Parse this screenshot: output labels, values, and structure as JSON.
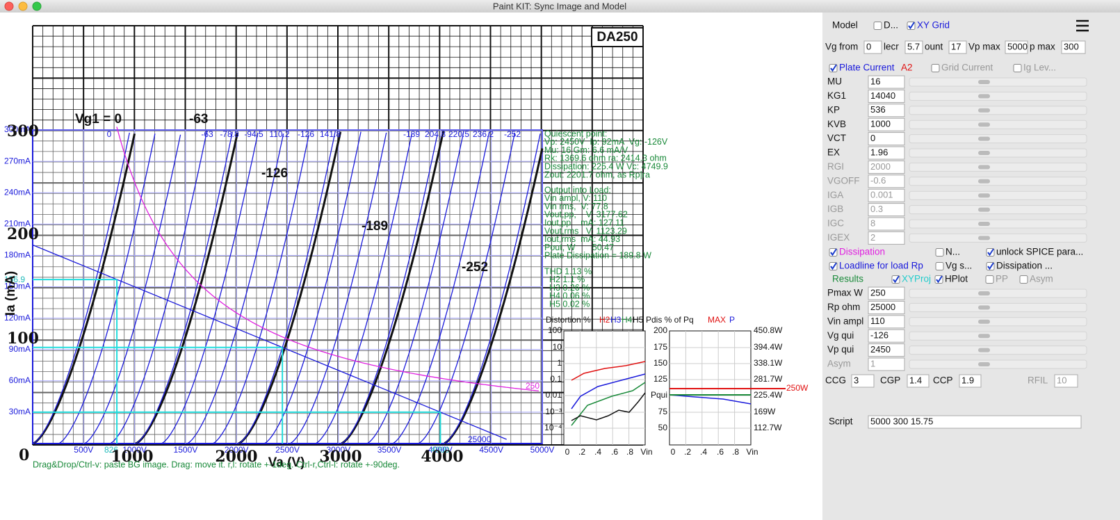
{
  "window": {
    "title": "Paint KIT: Sync Image and Model"
  },
  "scan": {
    "tube": "DA250",
    "y_labels": [
      "300",
      "200",
      "100",
      "0"
    ],
    "x_labels": [
      "1000",
      "2000",
      "3000",
      "4000"
    ],
    "curve_labels": [
      "Vg1 = 0",
      "-63",
      "-126",
      "-189",
      "-252"
    ],
    "y_axis": "Ia (mA)",
    "x_axis": "Va (V)"
  },
  "plot": {
    "y_ticks": [
      "30mA",
      "60mA",
      "90mA",
      "120mA",
      "150mA",
      "180mA",
      "210mA",
      "240mA",
      "270mA",
      "300mA"
    ],
    "x_ticks": [
      "500V",
      "1000V",
      "1500V",
      "2000V",
      "2500V",
      "3000V",
      "3500V",
      "4000V",
      "4500V",
      "5000V"
    ],
    "grid_labels": [
      "0",
      "-63",
      "-78.8",
      "-94.5",
      "110.2",
      "-126",
      "141.8",
      "-189",
      "204.8",
      "220.5",
      "236.2",
      "-252"
    ],
    "projection_labels": [
      "156.9",
      "826",
      "4000"
    ],
    "dissipation_label": "250",
    "loadline_label": "25000"
  },
  "info": {
    "quiescent": [
      "Quiescent point:",
      "Vp: 2450V  Ip: 92mA  Vg: -126V",
      "Mu: 16 Gm: 6.6 mA/V",
      "Rk: 1369.6 ohm ra: 2414.3 ohm",
      "Dissipation: 225.4 W Vc: 4749.9",
      "Zout: 2201.7 ohm, as Rp|ra"
    ],
    "output": [
      "Output into Load:",
      "Vin ampl, V: 110",
      "Vin rms,  V: 77.8",
      "Vout,pp,    V: 3177.62",
      "Iout,pp    mA: 127.11",
      "Vout,rms   V: 1123.29",
      "Iout,rms  mA: 44.93",
      "Pout, W       50.47",
      "Plate Dissipation = 189.8 W"
    ],
    "thd": [
      "THD 1.13 %",
      "  H2 1.1 %",
      "  H3 0.26 %",
      "  H4 0.06 %",
      "  H5 0.02 %"
    ]
  },
  "distortion": {
    "title": "Distortion %",
    "h2": "H2",
    "h3": "H3",
    "h4": "H4",
    "h5": "H5",
    "pdis": "Pdis % of Pq",
    "max": "MAX",
    "p": "P",
    "left_y": [
      "100",
      "10",
      "1",
      "0.1",
      "0.01",
      "10⁻³",
      "10⁻⁴"
    ],
    "x": [
      "0",
      ".2",
      ".4",
      ".6",
      ".8",
      "Vin"
    ],
    "right_y_left": [
      "200",
      "175",
      "150",
      "125",
      "Pqui",
      "75",
      "50"
    ],
    "right_y_right": [
      "450.8W",
      "394.4W",
      "338.1W",
      "281.7W",
      "225.4W",
      "169W",
      "112.7W"
    ],
    "max_label": "250W"
  },
  "status": "Drag&Drop/Ctrl-v: paste BG image. Drag: move it. r,l: rotate +-1deg. Ctrl-r,Ctrl-l: rotate +-90deg.",
  "panel": {
    "header": [
      {
        "label": "Model"
      },
      {
        "label": "D...",
        "checked": false
      },
      {
        "label": "XY Grid",
        "checked": true
      }
    ],
    "range": [
      {
        "label": "Vg from",
        "value": 0
      },
      {
        "label": "lecr",
        "value": 5.7
      },
      {
        "label": "ount",
        "value": 17
      },
      {
        "label": "Vp max",
        "value": 5000
      },
      {
        "label": "p max",
        "value": 300
      }
    ],
    "plate_row": [
      {
        "label": "Plate Current",
        "checked": true
      },
      {
        "label": "A2"
      },
      {
        "label": "Grid Current",
        "checked": false
      },
      {
        "label": "Ig Lev...",
        "checked": false
      }
    ],
    "params": [
      {
        "label": "MU",
        "value": 16,
        "enabled": true
      },
      {
        "label": "KG1",
        "value": 14040,
        "enabled": true
      },
      {
        "label": "KP",
        "value": 536,
        "enabled": true
      },
      {
        "label": "KVB",
        "value": 1000,
        "enabled": true
      },
      {
        "label": "VCT",
        "value": 0,
        "enabled": true
      },
      {
        "label": "EX",
        "value": 1.96,
        "enabled": true
      },
      {
        "label": "RGI",
        "value": 2000,
        "enabled": false
      },
      {
        "label": "VGOFF",
        "value": -0.6,
        "enabled": false
      },
      {
        "label": "IGA",
        "value": 0.001,
        "enabled": false
      },
      {
        "label": "IGB",
        "value": 0.3,
        "enabled": false
      },
      {
        "label": "IGC",
        "value": 8,
        "enabled": false
      },
      {
        "label": "IGEX",
        "value": 2,
        "enabled": false
      }
    ],
    "options1": [
      {
        "label": "Dissipation",
        "checked": true
      },
      {
        "label": "N...",
        "checked": false
      },
      {
        "label": "unlock SPICE para...",
        "checked": true
      }
    ],
    "options2": [
      {
        "label": "Loadline for load Rp",
        "checked": true
      },
      {
        "label": "Vg s...",
        "checked": false
      },
      {
        "label": "Dissipation ...",
        "checked": true
      }
    ],
    "options3": [
      {
        "label": "Results"
      },
      {
        "label": "XYProj",
        "checked": true
      },
      {
        "label": "HPlot",
        "checked": true
      },
      {
        "label": "PP",
        "checked": false
      },
      {
        "label": "Asym",
        "checked": false
      }
    ],
    "results": [
      {
        "label": "Pmax W",
        "value": 250,
        "enabled": true
      },
      {
        "label": "Rp ohm",
        "value": 25000,
        "enabled": true
      },
      {
        "label": "Vin ampl",
        "value": 110,
        "enabled": true
      },
      {
        "label": "Vg qui",
        "value": -126,
        "enabled": true
      },
      {
        "label": "Vp qui",
        "value": 2450,
        "enabled": true
      },
      {
        "label": "Asym",
        "value": 1,
        "enabled": false
      }
    ],
    "caps": [
      {
        "label": "CCG",
        "value": 3,
        "enabled": true
      },
      {
        "label": "CGP",
        "value": 1.4,
        "enabled": true
      },
      {
        "label": "CCP",
        "value": 1.9,
        "enabled": true
      },
      {
        "label": "RFIL",
        "value": 10,
        "enabled": false
      }
    ],
    "script": {
      "label": "Script",
      "value": "5000 300 15.75"
    }
  }
}
